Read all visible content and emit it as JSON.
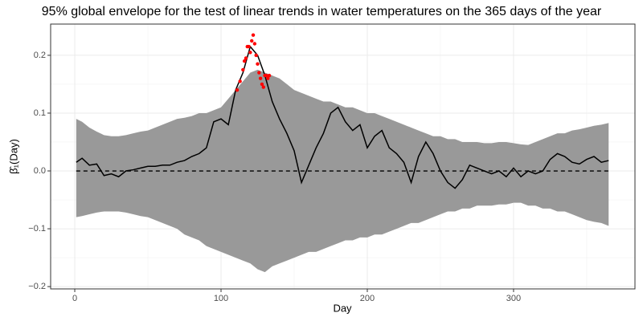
{
  "chart_data": {
    "type": "envelope",
    "title": "95% global envelope for the test of linear trends in water temperatures on the 365 days of the year",
    "x_label": "Day",
    "y_label": "β̂₁(Day)",
    "x": [
      1,
      5,
      10,
      15,
      20,
      25,
      30,
      35,
      40,
      45,
      50,
      55,
      60,
      65,
      70,
      75,
      80,
      85,
      90,
      95,
      100,
      105,
      110,
      115,
      120,
      125,
      130,
      135,
      140,
      145,
      150,
      155,
      160,
      165,
      170,
      175,
      180,
      185,
      190,
      195,
      200,
      205,
      210,
      215,
      220,
      225,
      230,
      235,
      240,
      245,
      250,
      255,
      260,
      265,
      270,
      275,
      280,
      285,
      290,
      295,
      300,
      305,
      310,
      315,
      320,
      325,
      330,
      335,
      340,
      345,
      350,
      355,
      360,
      365
    ],
    "upper": [
      0.09,
      0.085,
      0.075,
      0.068,
      0.062,
      0.06,
      0.06,
      0.062,
      0.065,
      0.068,
      0.07,
      0.075,
      0.08,
      0.085,
      0.09,
      0.092,
      0.095,
      0.1,
      0.1,
      0.105,
      0.11,
      0.125,
      0.14,
      0.155,
      0.17,
      0.175,
      0.17,
      0.165,
      0.16,
      0.15,
      0.14,
      0.135,
      0.13,
      0.125,
      0.12,
      0.12,
      0.115,
      0.11,
      0.11,
      0.105,
      0.1,
      0.1,
      0.095,
      0.09,
      0.085,
      0.08,
      0.075,
      0.07,
      0.065,
      0.06,
      0.06,
      0.055,
      0.055,
      0.05,
      0.05,
      0.05,
      0.048,
      0.048,
      0.05,
      0.05,
      0.048,
      0.046,
      0.045,
      0.05,
      0.055,
      0.06,
      0.065,
      0.065,
      0.07,
      0.072,
      0.075,
      0.078,
      0.08,
      0.083
    ],
    "lower": [
      -0.08,
      -0.078,
      -0.075,
      -0.072,
      -0.07,
      -0.07,
      -0.07,
      -0.072,
      -0.075,
      -0.078,
      -0.08,
      -0.085,
      -0.09,
      -0.095,
      -0.1,
      -0.11,
      -0.115,
      -0.12,
      -0.13,
      -0.135,
      -0.14,
      -0.145,
      -0.15,
      -0.155,
      -0.16,
      -0.17,
      -0.175,
      -0.165,
      -0.16,
      -0.155,
      -0.15,
      -0.145,
      -0.14,
      -0.14,
      -0.135,
      -0.13,
      -0.125,
      -0.12,
      -0.12,
      -0.115,
      -0.115,
      -0.11,
      -0.11,
      -0.105,
      -0.1,
      -0.095,
      -0.09,
      -0.09,
      -0.085,
      -0.08,
      -0.075,
      -0.07,
      -0.07,
      -0.065,
      -0.065,
      -0.06,
      -0.06,
      -0.06,
      -0.058,
      -0.058,
      -0.055,
      -0.055,
      -0.06,
      -0.06,
      -0.065,
      -0.065,
      -0.07,
      -0.07,
      -0.075,
      -0.08,
      -0.085,
      -0.088,
      -0.09,
      -0.095
    ],
    "values": [
      0.015,
      0.022,
      0.01,
      0.012,
      -0.008,
      -0.005,
      -0.01,
      0.0,
      0.002,
      0.005,
      0.008,
      0.008,
      0.01,
      0.01,
      0.015,
      0.018,
      0.025,
      0.03,
      0.04,
      0.085,
      0.09,
      0.08,
      0.14,
      0.17,
      0.215,
      0.2,
      0.165,
      0.12,
      0.09,
      0.065,
      0.035,
      -0.02,
      0.01,
      0.04,
      0.065,
      0.1,
      0.11,
      0.085,
      0.07,
      0.08,
      0.04,
      0.06,
      0.07,
      0.04,
      0.03,
      0.015,
      -0.02,
      0.025,
      0.05,
      0.03,
      0.0,
      -0.02,
      -0.03,
      -0.015,
      0.01,
      0.005,
      0.0,
      -0.005,
      0.0,
      -0.01,
      0.005,
      -0.01,
      0.0,
      -0.005,
      0.0,
      0.02,
      0.03,
      0.025,
      0.015,
      0.012,
      0.02,
      0.025,
      0.015,
      0.018
    ],
    "reference": 0,
    "outside": {
      "x": [
        111,
        113,
        115,
        116,
        117,
        118,
        119,
        120,
        121,
        122,
        123,
        124,
        125,
        126,
        127,
        128,
        129,
        130,
        131,
        132,
        133
      ],
      "values": [
        0.14,
        0.155,
        0.175,
        0.19,
        0.195,
        0.215,
        0.215,
        0.205,
        0.225,
        0.235,
        0.22,
        0.2,
        0.185,
        0.17,
        0.16,
        0.15,
        0.145,
        0.165,
        0.165,
        0.16,
        0.165
      ]
    },
    "band_color": "#999999",
    "line_color": "#000000",
    "point_color": "#ff0000",
    "xlim": [
      -16.5,
      383
    ],
    "ylim": [
      -0.204,
      0.254
    ],
    "xticks": [
      0,
      100,
      200,
      300
    ],
    "yticks": [
      {
        "value": -0.2,
        "label": "−0.2"
      },
      {
        "value": -0.1,
        "label": "−0.1"
      },
      {
        "value": 0,
        "label": "0.0"
      },
      0.1,
      0.2
    ],
    "xminor": [
      50,
      150,
      250,
      350
    ],
    "yminor": [
      -0.15,
      -0.05,
      0.05,
      0.15
    ],
    "grid": true
  }
}
